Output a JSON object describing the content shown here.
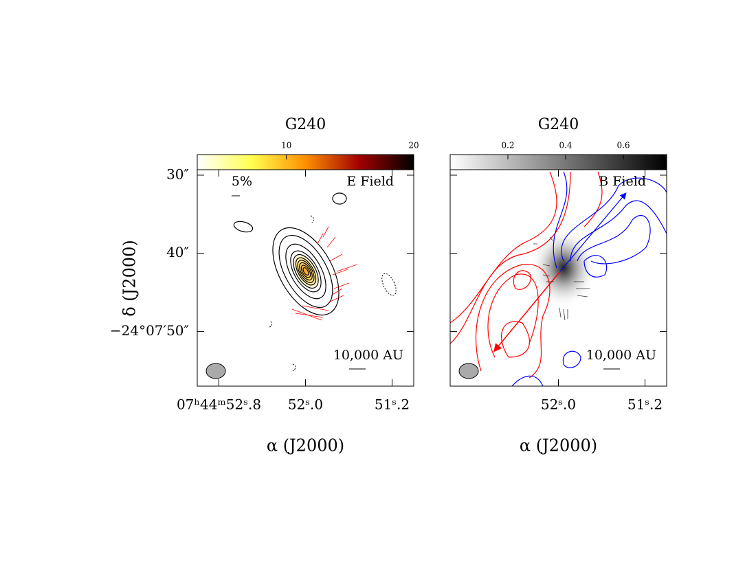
{
  "y_axis": {
    "label": "δ (J2000)",
    "lim": [
      29.3,
      57
    ],
    "ticks": [
      {
        "value": 30,
        "label": "30″"
      },
      {
        "value": 40,
        "label": "40″"
      },
      {
        "value": 50,
        "label": "−24°07′50″"
      }
    ]
  },
  "panels": [
    {
      "title": "G240",
      "xlim": [
        53.0,
        51.0
      ],
      "xticks": [
        {
          "value": 52.8,
          "label": "07ʰ44ᵐ52ˢ.8"
        },
        {
          "value": 52.0,
          "label": "52ˢ.0"
        },
        {
          "value": 51.2,
          "label": "51ˢ.2"
        }
      ],
      "x_label": "α (J2000)",
      "colorbar": {
        "lim": [
          3,
          20
        ],
        "ticks": [
          10,
          20
        ],
        "colors": [
          "#ffffff",
          "#ffff50",
          "#ff9000",
          "#a00000",
          "#000000"
        ]
      },
      "annotations": [
        "5%",
        "E Field",
        "10,000 AU"
      ]
    },
    {
      "title": "G240",
      "xlim": [
        53.0,
        51.0
      ],
      "xticks": [
        {
          "value": 52.0,
          "label": "52ˢ.0"
        },
        {
          "value": 51.2,
          "label": "51ˢ.2"
        }
      ],
      "x_label": "α (J2000)",
      "colorbar": {
        "lim": [
          0,
          0.75
        ],
        "ticks": [
          0.2,
          0.4,
          0.6
        ],
        "colors": [
          "#ffffff",
          "#000000"
        ]
      },
      "annotations": [
        "B Field",
        "10,000 AU"
      ]
    }
  ]
}
